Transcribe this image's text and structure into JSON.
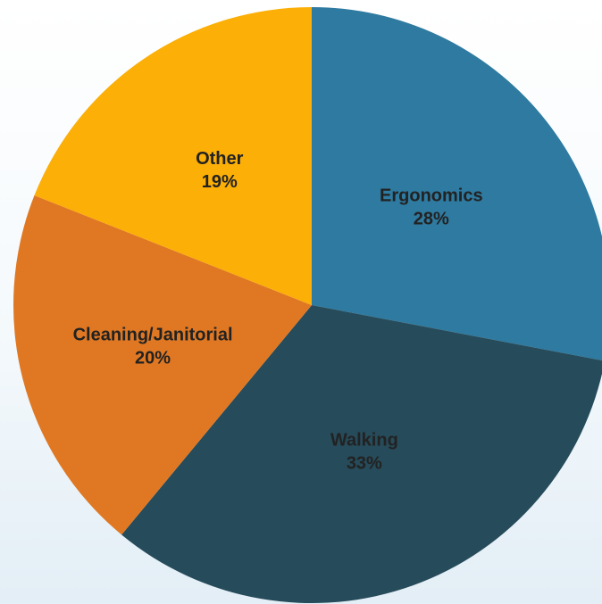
{
  "chart_data": {
    "type": "pie",
    "title": "",
    "start_angle_deg": 0,
    "direction": "clockwise",
    "slices": [
      {
        "label": "Ergonomics",
        "percent_label": "28%",
        "value": 28,
        "color": "#2e7aa0"
      },
      {
        "label": "Walking",
        "percent_label": "33%",
        "value": 33,
        "color": "#264b5a"
      },
      {
        "label": "Cleaning/Janitorial",
        "percent_label": "20%",
        "value": 20,
        "color": "#e07823"
      },
      {
        "label": "Other",
        "percent_label": "19%",
        "value": 19,
        "color": "#fbaf07"
      }
    ]
  }
}
